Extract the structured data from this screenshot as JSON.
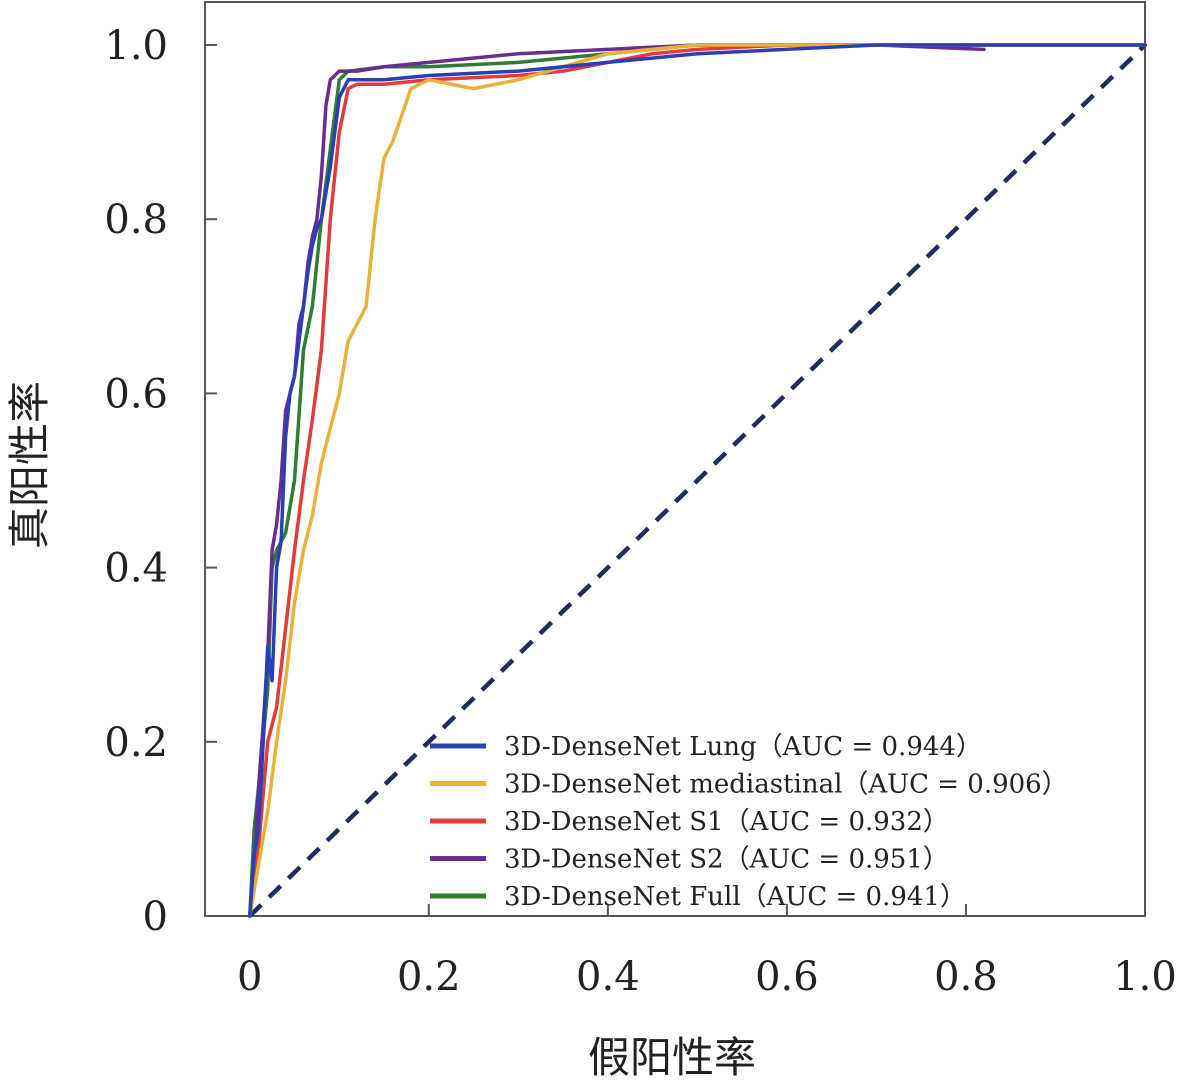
{
  "chart_data": {
    "type": "line",
    "title": "",
    "xlabel": "假阳性率",
    "ylabel": "真阳性率",
    "xlim": [
      -0.05,
      1.0
    ],
    "ylim": [
      0,
      1.0
    ],
    "xticks": [
      {
        "value": 0,
        "label": "0"
      },
      {
        "value": 0.2,
        "label": "0.2"
      },
      {
        "value": 0.4,
        "label": "0.4"
      },
      {
        "value": 0.6,
        "label": "0.6"
      },
      {
        "value": 0.8,
        "label": "0.8"
      },
      {
        "value": 1.0,
        "label": "1.0"
      }
    ],
    "yticks": [
      {
        "value": 0,
        "label": "0"
      },
      {
        "value": 0.2,
        "label": "0.2"
      },
      {
        "value": 0.4,
        "label": "0.4"
      },
      {
        "value": 0.6,
        "label": "0.6"
      },
      {
        "value": 0.8,
        "label": "0.8"
      },
      {
        "value": 1.0,
        "label": "1.0"
      }
    ],
    "grid": false,
    "legend_position": "bottom-right",
    "chance_line": {
      "x": [
        0,
        1
      ],
      "y": [
        0,
        1
      ],
      "color": "#1f2d5c",
      "style": "dashed"
    },
    "series": [
      {
        "name": "3D-DenseNet Lung（AUC = 0.944）",
        "color": "#2b3fb5",
        "x": [
          0,
          0.005,
          0.01,
          0.015,
          0.02,
          0.025,
          0.03,
          0.035,
          0.04,
          0.045,
          0.05,
          0.055,
          0.06,
          0.065,
          0.07,
          0.075,
          0.08,
          0.09,
          0.1,
          0.11,
          0.15,
          0.2,
          0.3,
          0.4,
          0.5,
          0.7,
          0.9,
          1.0
        ],
        "y": [
          0,
          0.07,
          0.1,
          0.2,
          0.31,
          0.27,
          0.4,
          0.43,
          0.55,
          0.6,
          0.62,
          0.66,
          0.7,
          0.74,
          0.77,
          0.79,
          0.8,
          0.86,
          0.94,
          0.96,
          0.96,
          0.965,
          0.97,
          0.98,
          0.99,
          1.0,
          1.0,
          1.0
        ]
      },
      {
        "name": "3D-DenseNet mediastinal（AUC = 0.906）",
        "color": "#e8b23a",
        "x": [
          0,
          0.01,
          0.02,
          0.03,
          0.04,
          0.05,
          0.06,
          0.07,
          0.08,
          0.09,
          0.1,
          0.11,
          0.12,
          0.13,
          0.14,
          0.15,
          0.16,
          0.17,
          0.18,
          0.2,
          0.25,
          0.3,
          0.4,
          0.5,
          0.7,
          0.9,
          1.0
        ],
        "y": [
          0,
          0.06,
          0.12,
          0.2,
          0.27,
          0.36,
          0.42,
          0.46,
          0.52,
          0.56,
          0.6,
          0.66,
          0.68,
          0.7,
          0.8,
          0.87,
          0.89,
          0.92,
          0.95,
          0.96,
          0.95,
          0.96,
          0.99,
          1.0,
          1.0,
          1.0,
          1.0
        ]
      },
      {
        "name": "3D-DenseNet S1（AUC = 0.932）",
        "color": "#e23b3b",
        "x": [
          0,
          0.01,
          0.02,
          0.03,
          0.04,
          0.05,
          0.06,
          0.07,
          0.08,
          0.09,
          0.1,
          0.11,
          0.12,
          0.15,
          0.2,
          0.3,
          0.35,
          0.4,
          0.45,
          0.5,
          0.6,
          0.7,
          0.8,
          0.9,
          1.0
        ],
        "y": [
          0,
          0.08,
          0.2,
          0.24,
          0.33,
          0.42,
          0.5,
          0.57,
          0.65,
          0.8,
          0.9,
          0.95,
          0.955,
          0.955,
          0.96,
          0.965,
          0.97,
          0.98,
          0.99,
          0.995,
          1.0,
          1.0,
          1.0,
          1.0,
          1.0
        ]
      },
      {
        "name": "3D-DenseNet S2（AUC = 0.951）",
        "color": "#6b2c91",
        "x": [
          0,
          0.005,
          0.01,
          0.015,
          0.02,
          0.025,
          0.03,
          0.035,
          0.04,
          0.045,
          0.05,
          0.055,
          0.06,
          0.065,
          0.07,
          0.075,
          0.08,
          0.085,
          0.09,
          0.1,
          0.12,
          0.15,
          0.2,
          0.3,
          0.5,
          0.7,
          0.82
        ],
        "y": [
          0,
          0.06,
          0.15,
          0.22,
          0.3,
          0.42,
          0.45,
          0.5,
          0.58,
          0.6,
          0.62,
          0.68,
          0.7,
          0.75,
          0.78,
          0.8,
          0.85,
          0.93,
          0.96,
          0.97,
          0.97,
          0.975,
          0.98,
          0.99,
          1.0,
          1.0,
          0.995
        ]
      },
      {
        "name": "3D-DenseNet Full（AUC = 0.941）",
        "color": "#2e7d32",
        "x": [
          0,
          0.005,
          0.01,
          0.02,
          0.025,
          0.03,
          0.04,
          0.05,
          0.06,
          0.07,
          0.08,
          0.09,
          0.1,
          0.11,
          0.15,
          0.2,
          0.3,
          0.4,
          0.5,
          0.7,
          1.0
        ],
        "y": [
          0,
          0.1,
          0.15,
          0.26,
          0.4,
          0.42,
          0.44,
          0.5,
          0.65,
          0.7,
          0.8,
          0.88,
          0.96,
          0.97,
          0.975,
          0.975,
          0.98,
          0.99,
          1.0,
          1.0,
          1.0
        ]
      }
    ]
  }
}
